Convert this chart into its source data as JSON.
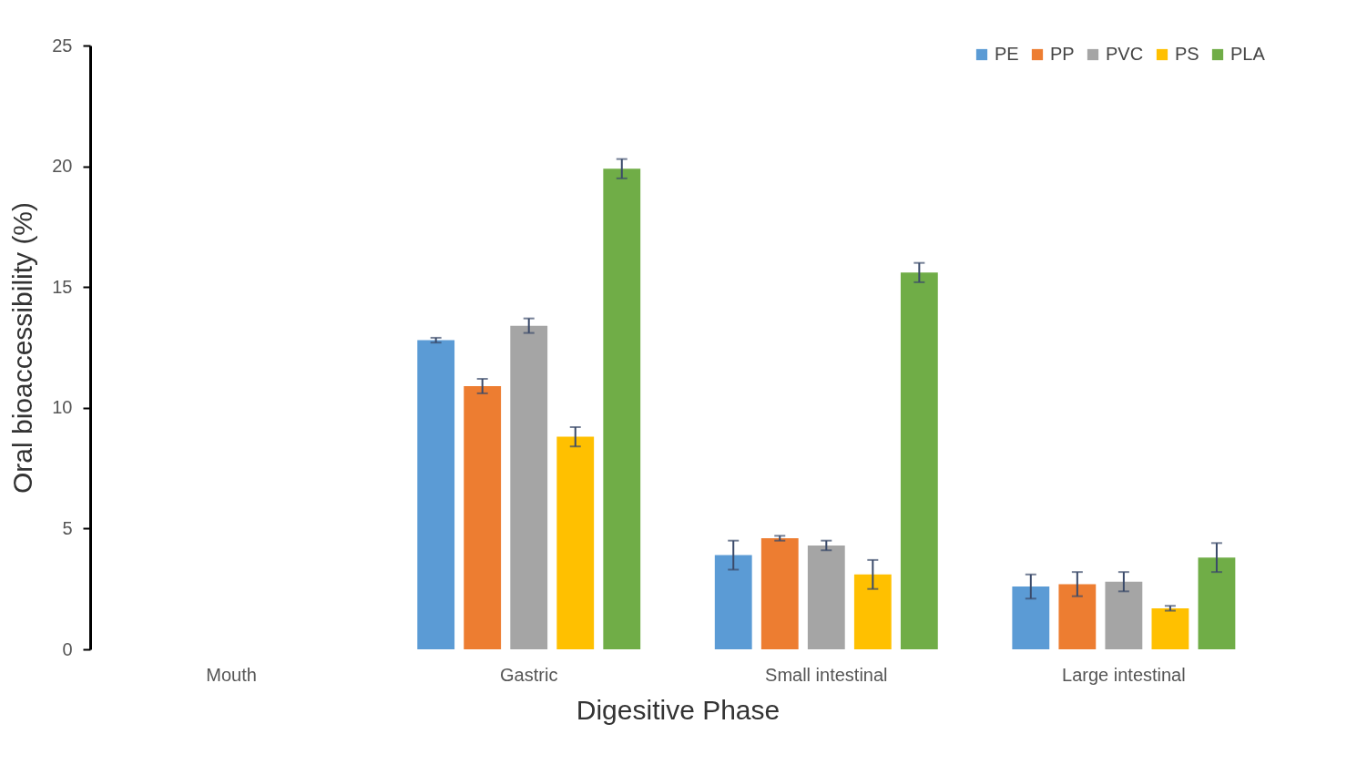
{
  "chart_data": {
    "type": "bar",
    "xlabel": "Digesitive Phase",
    "ylabel": "Oral bioaccessibility (%)",
    "categories": [
      "Mouth",
      "Gastric",
      "Small intestinal",
      "Large intestinal"
    ],
    "ylim": [
      0,
      25
    ],
    "yticks": [
      0,
      5,
      10,
      15,
      20,
      25
    ],
    "grid": false,
    "legend": "top right",
    "series": [
      {
        "name": "PE",
        "color": "#5b9bd5",
        "values": [
          0,
          12.8,
          3.9,
          2.6
        ],
        "errors": [
          null,
          0.1,
          0.6,
          0.5
        ]
      },
      {
        "name": "PP",
        "color": "#ed7d31",
        "values": [
          0,
          10.9,
          4.6,
          2.7
        ],
        "errors": [
          null,
          0.3,
          0.1,
          0.5
        ]
      },
      {
        "name": "PVC",
        "color": "#a5a5a5",
        "values": [
          0,
          13.4,
          4.3,
          2.8
        ],
        "errors": [
          null,
          0.3,
          0.2,
          0.4
        ]
      },
      {
        "name": "PS",
        "color": "#ffc000",
        "values": [
          0,
          8.8,
          3.1,
          1.7
        ],
        "errors": [
          null,
          0.4,
          0.6,
          0.1
        ]
      },
      {
        "name": "PLA",
        "color": "#70ad47",
        "values": [
          0,
          19.9,
          15.6,
          3.8
        ],
        "errors": [
          null,
          0.4,
          0.4,
          0.6
        ]
      }
    ]
  }
}
